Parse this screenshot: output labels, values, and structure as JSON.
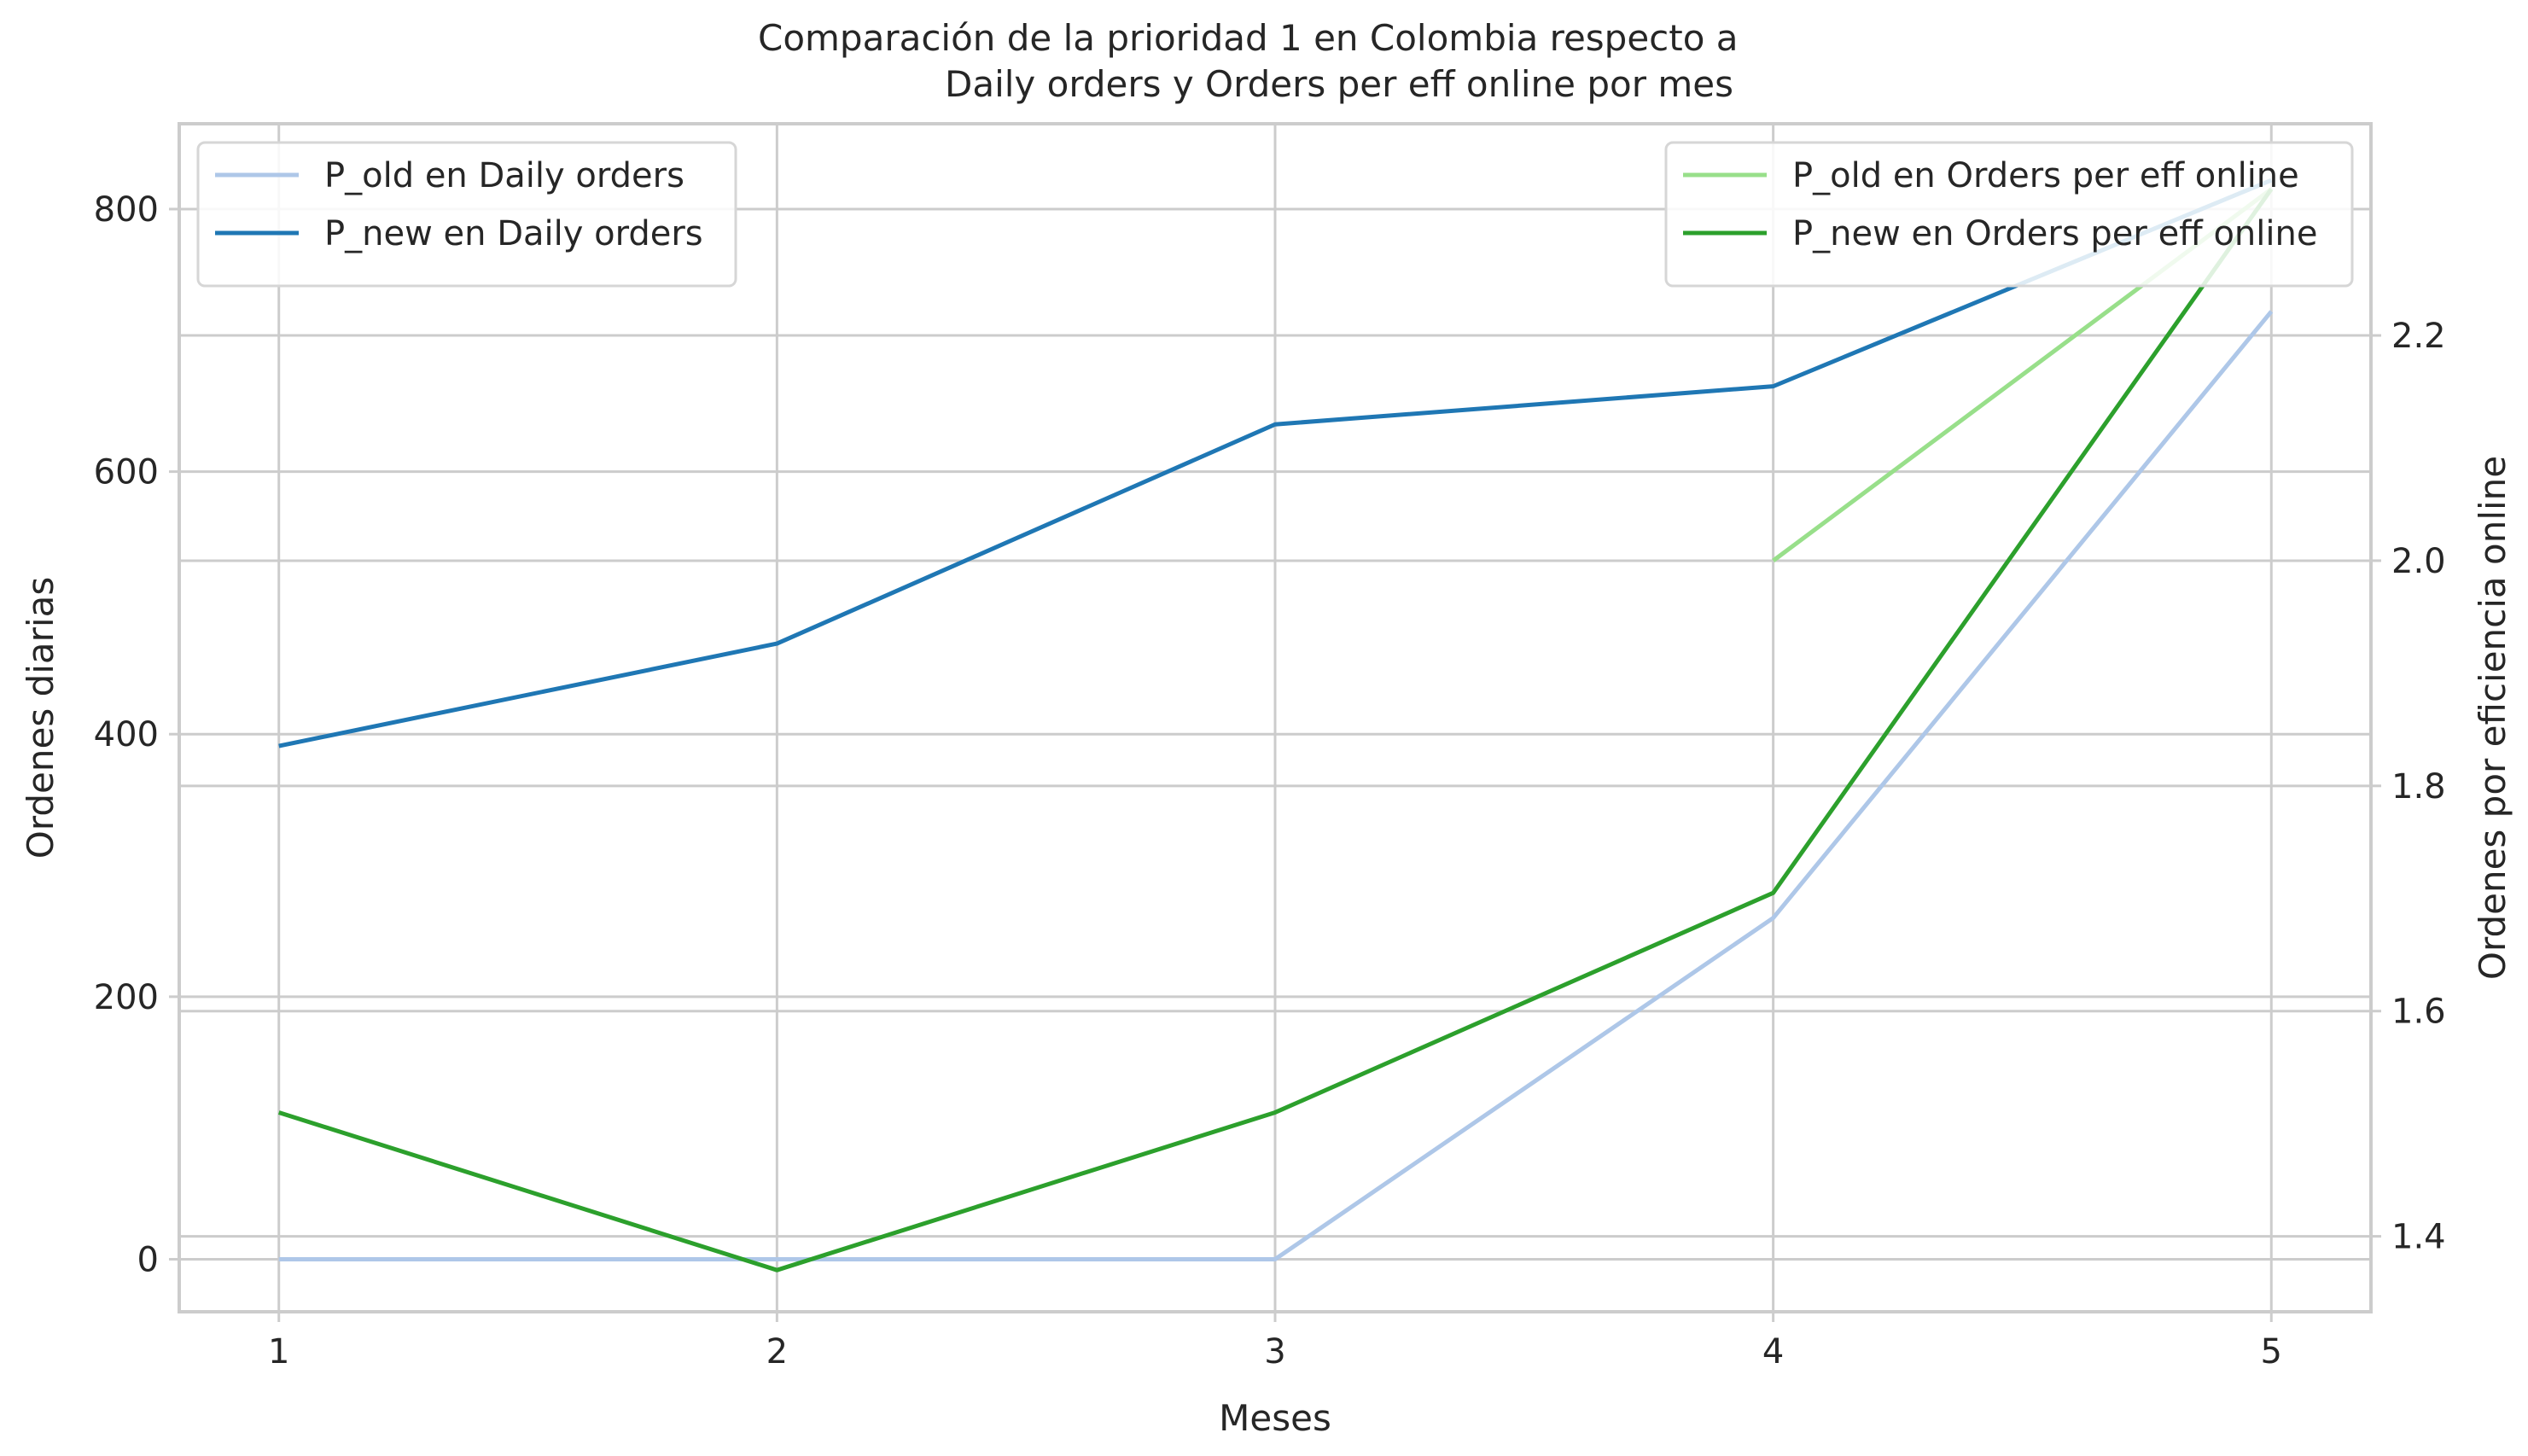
{
  "chart_data": {
    "type": "line",
    "title": "Comparación de la prioridad 1 en Colombia respecto a\nDaily orders y Orders per eff online por mes",
    "title_lines": [
      "Comparación de la prioridad 1 en Colombia respecto a",
      "Daily orders y Orders per eff online por mes"
    ],
    "xlabel": "Meses",
    "ylabel_left": "Ordenes diarias",
    "ylabel_right": "Ordenes por eficiencia online",
    "x": [
      1,
      2,
      3,
      4,
      5
    ],
    "xlim": [
      0.8,
      5.2
    ],
    "ylim_left": [
      -40,
      865
    ],
    "ylim_right": [
      1.333,
      2.388
    ],
    "xticks": [
      "1",
      "2",
      "3",
      "4",
      "5"
    ],
    "yticks_left": [
      0,
      200,
      400,
      600,
      800
    ],
    "yticks_right": [
      1.4,
      1.6,
      1.8,
      2.0,
      2.2
    ],
    "grid": true,
    "series_left": [
      {
        "name": "P_old en Daily orders",
        "color": "#aec7e8",
        "values": [
          0,
          0,
          0,
          260,
          722
        ]
      },
      {
        "name": "P_new en Daily orders",
        "color": "#1f77b4",
        "values": [
          391,
          469,
          636,
          665,
          822
        ]
      }
    ],
    "series_right": [
      {
        "name": "P_old en Orders per eff online",
        "color": "#98df8a",
        "values": [
          null,
          null,
          null,
          2.0,
          2.33
        ]
      },
      {
        "name": "P_new en Orders per eff online",
        "color": "#2ca02c",
        "values": [
          1.51,
          1.37,
          1.51,
          1.705,
          2.33
        ]
      }
    ],
    "legend_left_placement": "top-left",
    "legend_right_placement": "top-right"
  }
}
